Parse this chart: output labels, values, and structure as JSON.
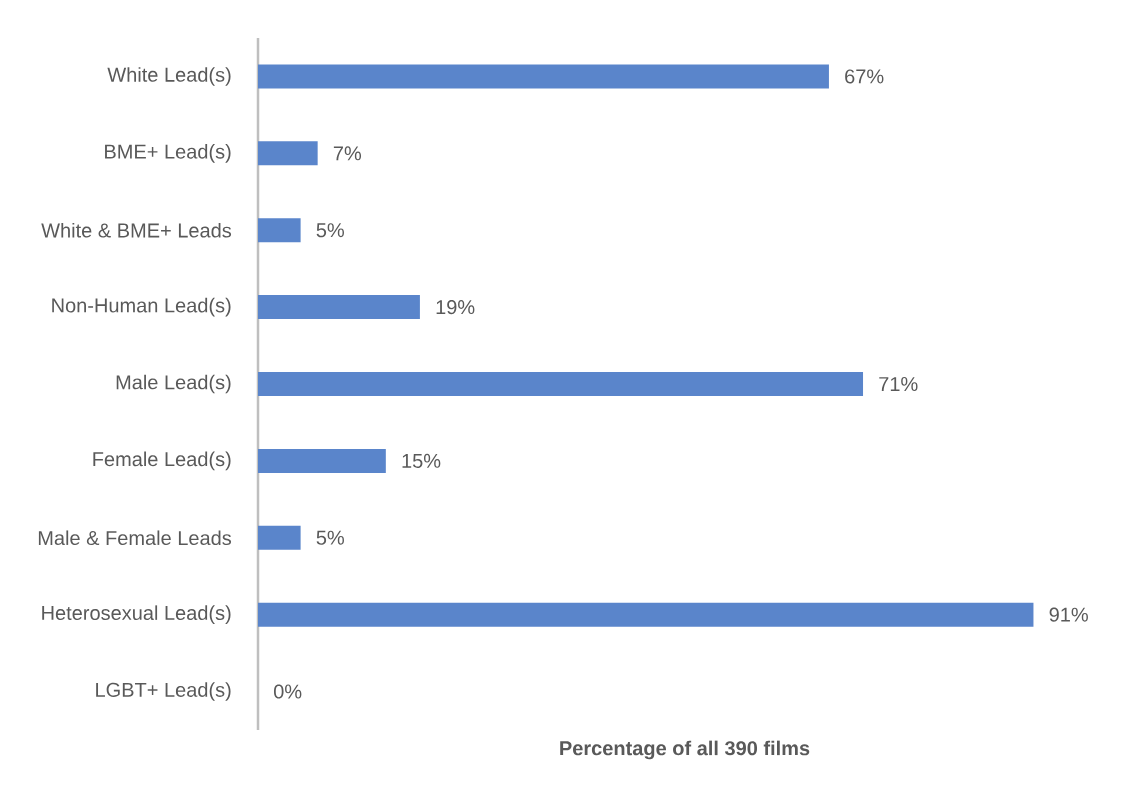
{
  "chart_data": {
    "type": "bar",
    "orientation": "horizontal",
    "categories": [
      "White Lead(s)",
      "BME+ Lead(s)",
      "White & BME+ Leads",
      "Non-Human Lead(s)",
      "Male Lead(s)",
      "Female Lead(s)",
      "Male & Female Leads",
      "Heterosexual Lead(s)",
      "LGBT+ Lead(s)"
    ],
    "values": [
      67,
      7,
      5,
      19,
      71,
      15,
      5,
      91,
      0
    ],
    "value_labels": [
      "67%",
      "7%",
      "5%",
      "19%",
      "71%",
      "15%",
      "5%",
      "91%",
      "0%"
    ],
    "color": "#5a85cb",
    "xlabel": "Percentage of all 390 films",
    "tick_labels": "y"
  }
}
